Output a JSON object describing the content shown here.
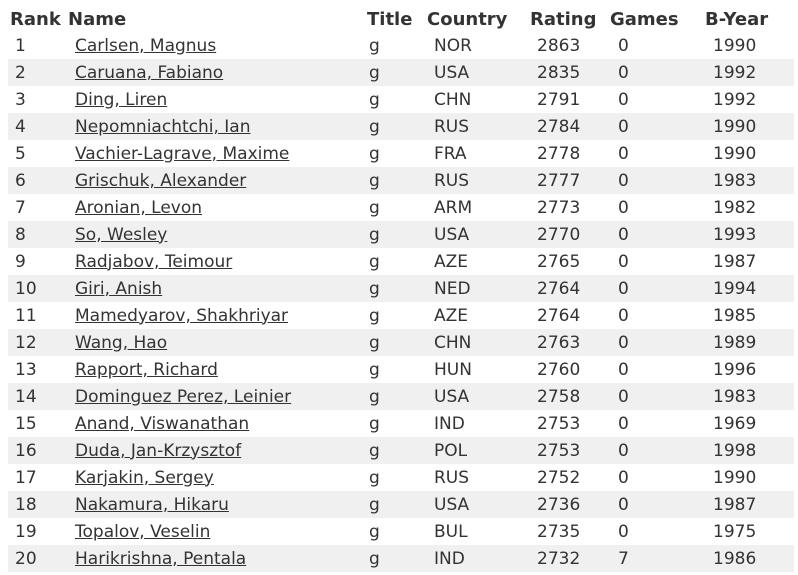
{
  "headers": {
    "rank": "Rank",
    "name": "Name",
    "title": "Title",
    "country": "Country",
    "rating": "Rating",
    "games": "Games",
    "byear": "B-Year"
  },
  "rows": [
    {
      "rank": "1",
      "name": "Carlsen, Magnus",
      "title": "g",
      "country": "NOR",
      "rating": "2863",
      "games": "0",
      "byear": "1990"
    },
    {
      "rank": "2",
      "name": "Caruana, Fabiano",
      "title": "g",
      "country": "USA",
      "rating": "2835",
      "games": "0",
      "byear": "1992"
    },
    {
      "rank": "3",
      "name": "Ding, Liren",
      "title": "g",
      "country": "CHN",
      "rating": "2791",
      "games": "0",
      "byear": "1992"
    },
    {
      "rank": "4",
      "name": "Nepomniachtchi, Ian",
      "title": "g",
      "country": "RUS",
      "rating": "2784",
      "games": "0",
      "byear": "1990"
    },
    {
      "rank": "5",
      "name": "Vachier-Lagrave, Maxime",
      "title": "g",
      "country": "FRA",
      "rating": "2778",
      "games": "0",
      "byear": "1990"
    },
    {
      "rank": "6",
      "name": "Grischuk, Alexander",
      "title": "g",
      "country": "RUS",
      "rating": "2777",
      "games": "0",
      "byear": "1983"
    },
    {
      "rank": "7",
      "name": "Aronian, Levon",
      "title": "g",
      "country": "ARM",
      "rating": "2773",
      "games": "0",
      "byear": "1982"
    },
    {
      "rank": "8",
      "name": "So, Wesley",
      "title": "g",
      "country": "USA",
      "rating": "2770",
      "games": "0",
      "byear": "1993"
    },
    {
      "rank": "9",
      "name": "Radjabov, Teimour",
      "title": "g",
      "country": "AZE",
      "rating": "2765",
      "games": "0",
      "byear": "1987"
    },
    {
      "rank": "10",
      "name": "Giri, Anish",
      "title": "g",
      "country": "NED",
      "rating": "2764",
      "games": "0",
      "byear": "1994"
    },
    {
      "rank": "11",
      "name": "Mamedyarov, Shakhriyar",
      "title": "g",
      "country": "AZE",
      "rating": "2764",
      "games": "0",
      "byear": "1985"
    },
    {
      "rank": "12",
      "name": "Wang, Hao",
      "title": "g",
      "country": "CHN",
      "rating": "2763",
      "games": "0",
      "byear": "1989"
    },
    {
      "rank": "13",
      "name": "Rapport, Richard",
      "title": "g",
      "country": "HUN",
      "rating": "2760",
      "games": "0",
      "byear": "1996"
    },
    {
      "rank": "14",
      "name": "Dominguez Perez, Leinier",
      "title": "g",
      "country": "USA",
      "rating": "2758",
      "games": "0",
      "byear": "1983"
    },
    {
      "rank": "15",
      "name": "Anand, Viswanathan",
      "title": "g",
      "country": "IND",
      "rating": "2753",
      "games": "0",
      "byear": "1969"
    },
    {
      "rank": "16",
      "name": "Duda, Jan-Krzysztof",
      "title": "g",
      "country": "POL",
      "rating": "2753",
      "games": "0",
      "byear": "1998"
    },
    {
      "rank": "17",
      "name": "Karjakin, Sergey",
      "title": "g",
      "country": "RUS",
      "rating": "2752",
      "games": "0",
      "byear": "1990"
    },
    {
      "rank": "18",
      "name": "Nakamura, Hikaru",
      "title": "g",
      "country": "USA",
      "rating": "2736",
      "games": "0",
      "byear": "1987"
    },
    {
      "rank": "19",
      "name": "Topalov, Veselin",
      "title": "g",
      "country": "BUL",
      "rating": "2735",
      "games": "0",
      "byear": "1975"
    },
    {
      "rank": "20",
      "name": "Harikrishna, Pentala",
      "title": "g",
      "country": "IND",
      "rating": "2732",
      "games": "7",
      "byear": "1986"
    }
  ]
}
